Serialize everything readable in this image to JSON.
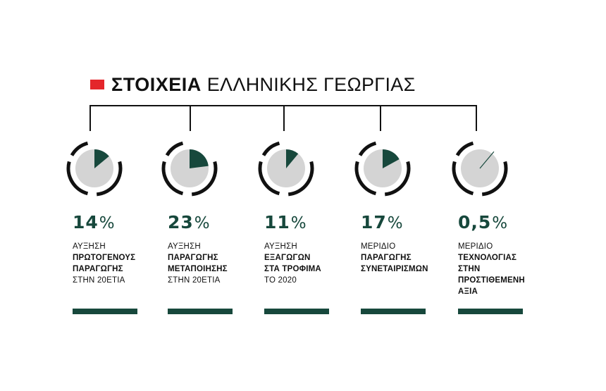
{
  "title": {
    "bold": "ΣΤΟΙΧΕΙΑ",
    "light": "ΕΛΛΗΝΙΚΗΣ ΓΕΩΡΓΙΑΣ"
  },
  "colors": {
    "accent_red": "#e4262b",
    "dark_green": "#17483c",
    "pie_gray": "#d4d4d4",
    "ring": "#111111"
  },
  "chart_data": {
    "type": "pie",
    "title": "ΣΤΟΙΧΕΙΑ ΕΛΛΗΝΙΚΗΣ ΓΕΩΡΓΙΑΣ",
    "items": [
      {
        "value": 14,
        "number": "14",
        "unit": "%",
        "lines": [
          {
            "text": "ΑΥΞΗΣΗ",
            "bold": false
          },
          {
            "text": "ΠΡΩΤΟΓΕΝΟΥΣ",
            "bold": true
          },
          {
            "text": "ΠΑΡΑΓΩΓΗΣ",
            "bold": true
          },
          {
            "text": "ΣΤΗΝ 20ΕΤΙΑ",
            "bold": false
          }
        ]
      },
      {
        "value": 23,
        "number": "23",
        "unit": "%",
        "lines": [
          {
            "text": "ΑΥΞΗΣΗ",
            "bold": false
          },
          {
            "text": "ΠΑΡΑΓΩΓΗΣ",
            "bold": true
          },
          {
            "text": "ΜΕΤΑΠΟΙΗΣΗΣ",
            "bold": true
          },
          {
            "text": "ΣΤΗΝ 20ΕΤΙΑ",
            "bold": false
          }
        ]
      },
      {
        "value": 11,
        "number": "11",
        "unit": "%",
        "lines": [
          {
            "text": "ΑΥΞΗΣΗ",
            "bold": false
          },
          {
            "text": "ΕΞΑΓΩΓΩΝ",
            "bold": true
          },
          {
            "text": "ΣΤΑ ΤΡΟΦΙΜΑ",
            "bold": true
          },
          {
            "text": "ΤΟ 2020",
            "bold": false
          }
        ]
      },
      {
        "value": 17,
        "number": "17",
        "unit": "%",
        "lines": [
          {
            "text": "ΜΕΡΙΔΙΟ",
            "bold": false
          },
          {
            "text": "ΠΑΡΑΓΩΓΗΣ",
            "bold": true
          },
          {
            "text": "ΣΥΝΕΤΑΙΡΙΣΜΩΝ",
            "bold": true
          }
        ]
      },
      {
        "value": 0.5,
        "number": "0,5",
        "unit": "%",
        "lines": [
          {
            "text": "ΜΕΡΙΔΙΟ",
            "bold": false
          },
          {
            "text": "ΤΕΧΝΟΛΟΓΙΑΣ",
            "bold": true
          },
          {
            "text": "ΣΤΗΝ",
            "bold": true
          },
          {
            "text": "ΠΡΟΣΤΙΘΕΜΕΝΗ",
            "bold": true
          },
          {
            "text": "ΑΞΙΑ",
            "bold": true
          }
        ]
      }
    ]
  }
}
